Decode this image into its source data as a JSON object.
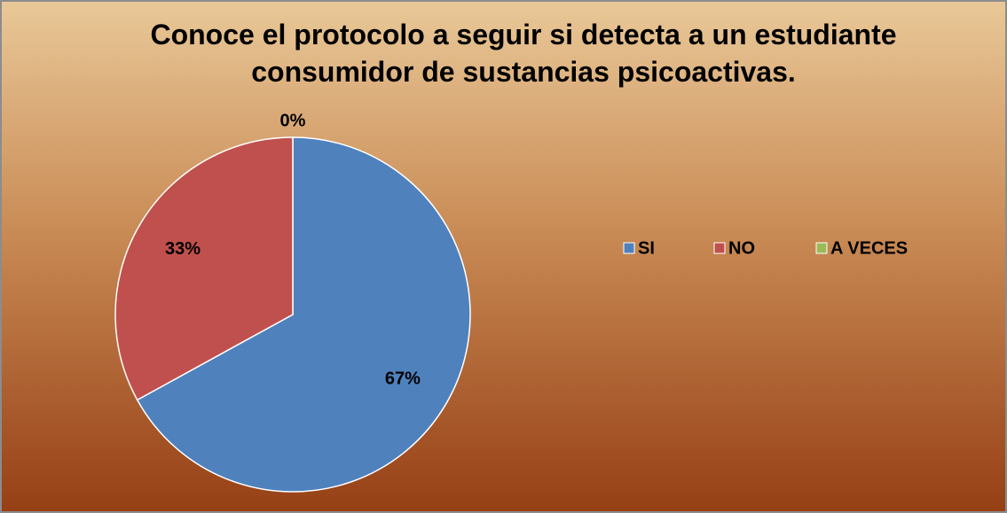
{
  "chart_data": {
    "type": "pie",
    "title": "Conoce el protocolo a seguir si detecta a un estudiante consumidor de sustancias psicoactivas.",
    "categories": [
      "SI",
      "NO",
      "A VECES"
    ],
    "values": [
      67,
      33,
      0
    ],
    "value_labels": [
      "67%",
      "33%",
      "0%"
    ],
    "colors": [
      "#4f81bd",
      "#c0504d",
      "#9bbb59"
    ],
    "legend": "right"
  }
}
